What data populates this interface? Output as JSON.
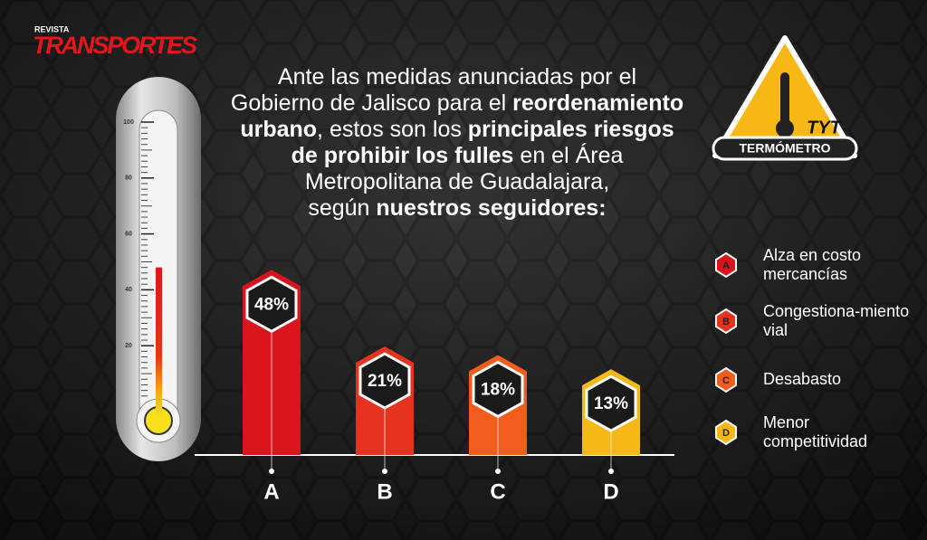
{
  "logo": {
    "kicker": "REVISTA",
    "name": "TRANSPORTES"
  },
  "badge": {
    "initials": "TYT",
    "name": "TERMÓMETRO"
  },
  "chart_data": {
    "type": "bar",
    "title_lines": [
      [
        {
          "text": "Ante las medidas anunciadas por el",
          "bold": false
        }
      ],
      [
        {
          "text": "Gobierno de Jalisco para el ",
          "bold": false
        },
        {
          "text": "reordenamiento",
          "bold": true
        }
      ],
      [
        {
          "text": "urbano",
          "bold": true
        },
        {
          "text": ", estos son los ",
          "bold": false
        },
        {
          "text": "principales riesgos",
          "bold": true
        }
      ],
      [
        {
          "text": "de prohibir los fulles",
          "bold": true
        },
        {
          "text": " en el Área",
          "bold": false
        }
      ],
      [
        {
          "text": "Metropolitana de Guadalajara,",
          "bold": false
        }
      ],
      [
        {
          "text": "según ",
          "bold": false
        },
        {
          "text": "nuestros seguidores:",
          "bold": true
        }
      ]
    ],
    "categories": [
      "A",
      "B",
      "C",
      "D"
    ],
    "values": [
      48,
      21,
      18,
      13
    ],
    "value_labels": [
      "48%",
      "21%",
      "18%",
      "13%"
    ],
    "colors": [
      "#d9141c",
      "#e6331f",
      "#f25c1c",
      "#f6b817"
    ],
    "legend": [
      "Alza en costo mercancías",
      "Congestiona-miento vial",
      "Desabasto",
      "Menor competitividad"
    ],
    "thermometer": {
      "lim": [
        0,
        100
      ],
      "ticks": [
        20,
        40,
        60,
        80,
        100
      ]
    }
  }
}
